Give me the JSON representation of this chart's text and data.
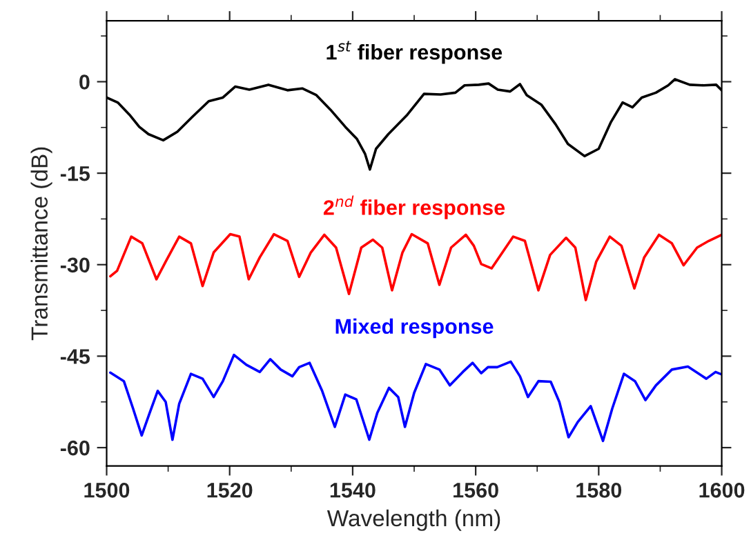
{
  "chart_data": {
    "type": "line",
    "xlabel": "Wavelength (nm)",
    "ylabel": "Transmittance (dB)",
    "xlim": [
      1500,
      1600
    ],
    "xticks": [
      1500,
      1520,
      1540,
      1560,
      1580,
      1600
    ],
    "ylim": [
      -63,
      10
    ],
    "yticks": [
      -60,
      -45,
      -30,
      -15,
      0
    ],
    "grid": false,
    "legend": false,
    "marker": "none",
    "line_style": "solid",
    "series": [
      {
        "name": "1$^{st}$ fiber response",
        "color": "#000000",
        "x": [
          1500,
          1501.8,
          1503.7,
          1505.3,
          1506.8,
          1509.2,
          1511.5,
          1513.9,
          1516.6,
          1518.9,
          1520.9,
          1523.2,
          1526.3,
          1529.4,
          1531.8,
          1534.1,
          1536.4,
          1538.8,
          1540.7,
          1542.0,
          1542.8,
          1543.8,
          1545.8,
          1548.9,
          1551.6,
          1554.3,
          1556.7,
          1558.2,
          1560.5,
          1562.1,
          1563.6,
          1565.6,
          1567.2,
          1568.3,
          1570.7,
          1573.0,
          1575.0,
          1577.7,
          1580.0,
          1582.0,
          1583.9,
          1585.5,
          1587.0,
          1589.3,
          1591.3,
          1592.4,
          1594.8,
          1597.1,
          1599.1,
          1600
        ],
        "values": [
          -2.6,
          -3.4,
          -5.4,
          -7.4,
          -8.6,
          -9.6,
          -8.2,
          -5.8,
          -3.2,
          -2.6,
          -0.8,
          -1.3,
          -0.5,
          -1.4,
          -1.1,
          -2.2,
          -4.6,
          -7.4,
          -9.4,
          -11.8,
          -14.4,
          -11.0,
          -8.6,
          -5.4,
          -2.0,
          -2.1,
          -1.8,
          -0.6,
          -0.5,
          -0.3,
          -1.3,
          -1.6,
          -0.4,
          -2.2,
          -3.8,
          -7.0,
          -10.2,
          -12.2,
          -11.0,
          -6.6,
          -3.4,
          -4.2,
          -2.6,
          -1.8,
          -0.6,
          0.4,
          -0.5,
          -0.6,
          -0.5,
          -1.4
        ]
      },
      {
        "name": "2$^{nd}$ fiber response",
        "color": "#ff0000",
        "x": [
          1500.6,
          1501.7,
          1504,
          1505.8,
          1508.1,
          1509.6,
          1511.8,
          1513.7,
          1515.6,
          1517.4,
          1520.1,
          1521.6,
          1523.1,
          1524.9,
          1527.2,
          1529.4,
          1531.3,
          1533.2,
          1535.4,
          1537.3,
          1539.4,
          1541.4,
          1543.3,
          1544.8,
          1546.4,
          1548.1,
          1549.6,
          1552.2,
          1554.1,
          1556,
          1558.4,
          1559.7,
          1560.9,
          1562.6,
          1563.8,
          1566.1,
          1568,
          1570.2,
          1572.1,
          1574.7,
          1576.2,
          1577.9,
          1579.6,
          1581.8,
          1583.7,
          1585.8,
          1587.4,
          1589.8,
          1591.9,
          1593.8,
          1596.0,
          1597.9,
          1600
        ],
        "values": [
          -31.9,
          -31.0,
          -25.4,
          -26.5,
          -32.4,
          -29.5,
          -25.4,
          -26.5,
          -33.5,
          -28.0,
          -25.0,
          -25.4,
          -32.4,
          -28.8,
          -25.0,
          -26.1,
          -32.0,
          -28.0,
          -25.1,
          -27.2,
          -34.8,
          -27.2,
          -25.9,
          -27.2,
          -34.2,
          -28.0,
          -25.0,
          -26.5,
          -33.3,
          -27.2,
          -25.1,
          -26.9,
          -29.9,
          -30.6,
          -28.8,
          -25.4,
          -26.1,
          -34.2,
          -28.4,
          -25.6,
          -27.2,
          -35.8,
          -29.5,
          -25.4,
          -26.9,
          -33.9,
          -28.8,
          -25.1,
          -26.5,
          -30.1,
          -27.2,
          -26.1,
          -25.1
        ]
      },
      {
        "name": "Mixed response",
        "color": "#0000ff",
        "x": [
          1500.6,
          1502.8,
          1504.3,
          1505.7,
          1507,
          1508.3,
          1509.6,
          1510.7,
          1511.8,
          1513.7,
          1515.6,
          1517.4,
          1518.9,
          1520.7,
          1522.7,
          1524.9,
          1526.6,
          1528.3,
          1530.2,
          1531.3,
          1533,
          1535.0,
          1537.1,
          1538.8,
          1540.6,
          1542.7,
          1544.0,
          1545.9,
          1547.4,
          1548.5,
          1550,
          1551.9,
          1554.1,
          1555.8,
          1557.9,
          1559.5,
          1560.9,
          1562,
          1563.5,
          1565.7,
          1567.2,
          1568.5,
          1570.2,
          1572.2,
          1573.6,
          1575.1,
          1576.6,
          1578.7,
          1580.7,
          1582.2,
          1584.1,
          1585.9,
          1587.6,
          1589.3,
          1591.9,
          1594.5,
          1597.5,
          1599.0,
          1600
        ],
        "values": [
          -47.7,
          -49.1,
          -53.6,
          -58.0,
          -54.3,
          -50.7,
          -52.5,
          -58.7,
          -52.8,
          -47.9,
          -48.7,
          -51.7,
          -49.1,
          -44.8,
          -46.4,
          -47.6,
          -45.5,
          -47.2,
          -48.3,
          -46.8,
          -46.1,
          -50.6,
          -56.6,
          -51.3,
          -52.1,
          -58.7,
          -54.3,
          -50.2,
          -51.7,
          -56.6,
          -51.0,
          -46.3,
          -47.2,
          -49.8,
          -47.6,
          -46.1,
          -47.8,
          -46.8,
          -46.8,
          -45.9,
          -48.3,
          -51.7,
          -49.1,
          -49.2,
          -52.5,
          -58.3,
          -55.8,
          -53.2,
          -58.9,
          -53.6,
          -47.9,
          -49.1,
          -52.2,
          -49.8,
          -47.2,
          -46.7,
          -48.7,
          -47.6,
          -48.0
        ]
      }
    ]
  }
}
